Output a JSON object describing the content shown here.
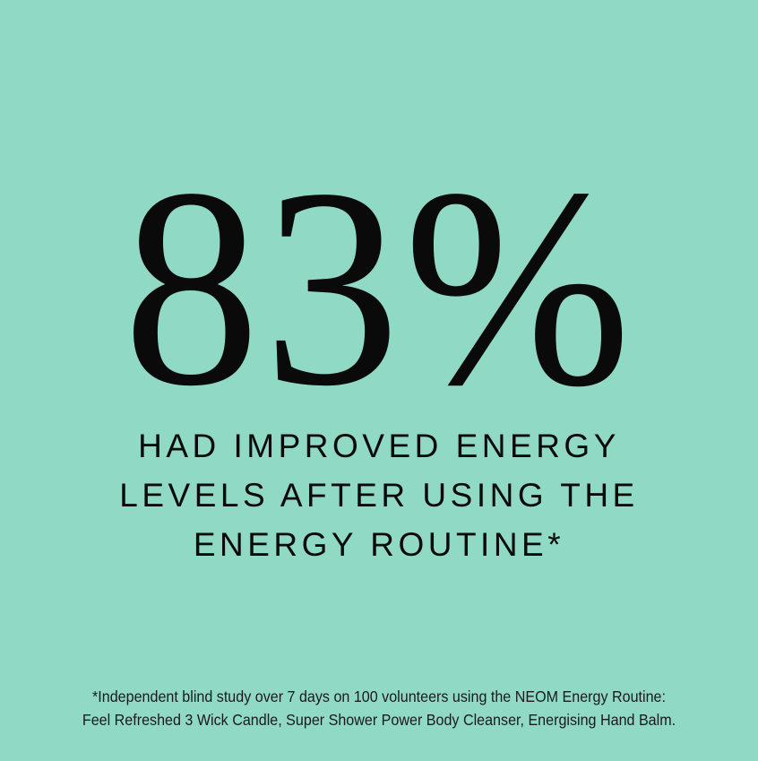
{
  "background_color": "#90d9c5",
  "stat": "83%",
  "headline": {
    "lines": [
      "HAD IMPROVED ENERGY",
      "LEVELS AFTER USING THE",
      "ENERGY ROUTINE*"
    ]
  },
  "footnote": {
    "lines": [
      "*Independent blind study over 7 days on 100 volunteers using the NEOM Energy Routine:",
      "Feel Refreshed 3 Wick Candle, Super Shower Power Body Cleanser, Energising Hand Balm."
    ]
  }
}
